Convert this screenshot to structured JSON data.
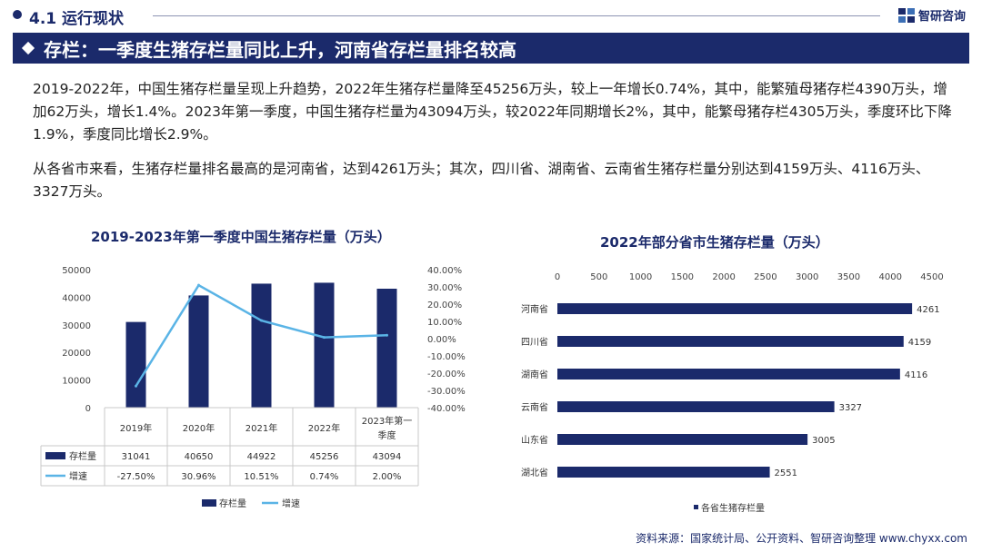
{
  "header": {
    "section": "4.1 运行现状",
    "brand": "智研咨询"
  },
  "banner": {
    "title": "存栏：一季度生猪存栏量同比上升，河南省存栏量排名较高"
  },
  "paragraphs": [
    "2019-2022年，中国生猪存栏量呈现上升趋势，2022年生猪存栏量降至45256万头，较上一年增长0.74%，其中，能繁殖母猪存栏4390万头，增加62万头，增长1.4%。2023年第一季度，中国生猪存栏量为43094万头，较2022年同期增长2%，其中，能繁母猪存栏4305万头，季度环比下降1.9%，季度同比增长2.9%。",
    "从各省市来看，生猪存栏量排名最高的是河南省，达到4261万头；其次，四川省、湖南省、云南省生猪存栏量分别达到4159万头、4116万头、3327万头。"
  ],
  "footer": {
    "source": "资料来源：国家统计局、公开资料、智研咨询整理 www.chyxx.com"
  },
  "colors": {
    "navy": "#1b2a6b",
    "line": "#5ab4e6"
  },
  "chart_data": [
    {
      "type": "bar",
      "title": "2019-2023年第一季度中国生猪存栏量（万头）",
      "categories": [
        "2019年",
        "2020年",
        "2021年",
        "2022年",
        "2023年第一季度"
      ],
      "category_lines": [
        [
          "2019年"
        ],
        [
          "2020年"
        ],
        [
          "2021年"
        ],
        [
          "2022年"
        ],
        [
          "2023年第一",
          "季度"
        ]
      ],
      "series": [
        {
          "name": "存栏量",
          "type": "bar",
          "values": [
            31041,
            40650,
            44922,
            45256,
            43094
          ],
          "labels": [
            "31041",
            "40650",
            "44922",
            "45256",
            "43094"
          ]
        },
        {
          "name": "增速",
          "type": "line",
          "values": [
            -27.5,
            30.96,
            10.51,
            0.74,
            2.0
          ],
          "labels": [
            "-27.50%",
            "30.96%",
            "10.51%",
            "0.74%",
            "2.00%"
          ]
        }
      ],
      "y_ticks": [
        "0",
        "10000",
        "20000",
        "30000",
        "40000",
        "50000"
      ],
      "y2_ticks": [
        "-40.00%",
        "-30.00%",
        "-20.00%",
        "-10.00%",
        "0.00%",
        "10.00%",
        "20.00%",
        "30.00%",
        "40.00%"
      ],
      "ylim": [
        0,
        50000
      ],
      "y2lim": [
        -40,
        40
      ],
      "legend": [
        "存栏量",
        "增速"
      ],
      "legend_position": "bottom"
    },
    {
      "type": "bar",
      "orientation": "horizontal",
      "title": "2022年部分省市生猪存栏量（万头）",
      "categories": [
        "河南省",
        "四川省",
        "湖南省",
        "云南省",
        "山东省",
        "湖北省"
      ],
      "series": [
        {
          "name": "各省生猪存栏量",
          "values": [
            4261,
            4159,
            4116,
            3327,
            3005,
            2551
          ],
          "labels": [
            "4261",
            "4159",
            "4116",
            "3327",
            "3005",
            "2551"
          ]
        }
      ],
      "x_ticks": [
        "0",
        "500",
        "1000",
        "1500",
        "2000",
        "2500",
        "3000",
        "3500",
        "4000",
        "4500"
      ],
      "xlim": [
        0,
        4500
      ],
      "legend": [
        "各省生猪存栏量"
      ],
      "legend_position": "bottom"
    }
  ]
}
